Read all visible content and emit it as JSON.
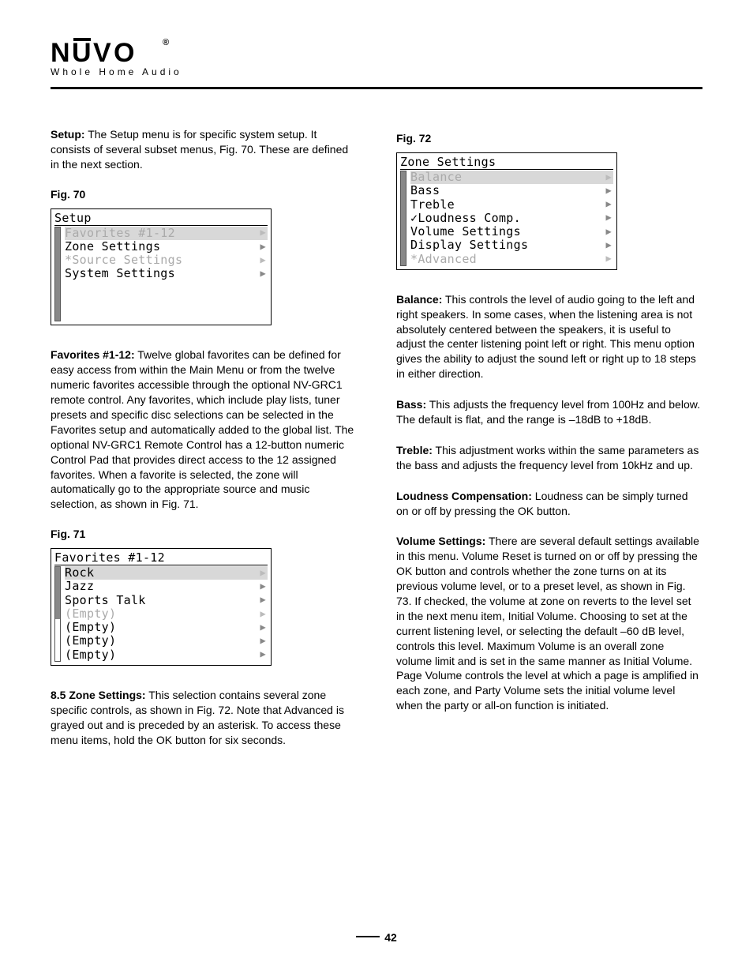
{
  "logo": {
    "main": "NUVO",
    "reg": "®",
    "sub": "Whole Home Audio"
  },
  "left": {
    "p1_label": "Setup:",
    "p1_text": "  The Setup menu is for specific system setup. It consists of several subset menus, Fig. 70. These are defined in the next section.",
    "fig70_label": "Fig. 70",
    "fig70": {
      "title": "Setup",
      "items": [
        {
          "label": "Favorites #1-12",
          "sel": true,
          "dim": true
        },
        {
          "label": "Zone Settings",
          "sel": false,
          "dim": false
        },
        {
          "label": "*Source Settings",
          "sel": false,
          "dim": true
        },
        {
          "label": "System Settings",
          "sel": false,
          "dim": false
        }
      ],
      "blank_rows": 3,
      "thumb_top": 0,
      "thumb_height": 100
    },
    "p2_label": "Favorites #1-12:",
    "p2_text": "  Twelve global favorites can be defined for easy access from within the Main Menu or from the twelve numeric favorites accessible through the optional NV-GRC1 remote control. Any favorites, which include play lists, tuner presets and specific disc selections can be selected in the Favorites setup and automatically added to the global list. The optional NV-GRC1 Remote Control has a 12-button numeric Control Pad that provides direct access to the 12 assigned favorites. When a favorite is selected, the zone will automatically go to the appropriate source and music selection, as shown in Fig. 71.",
    "fig71_label": "Fig. 71",
    "fig71": {
      "title": "Favorites #1-12",
      "items": [
        {
          "label": "Rock",
          "sel": true,
          "dim": false
        },
        {
          "label": "Jazz",
          "sel": false,
          "dim": false
        },
        {
          "label": "Sports Talk",
          "sel": false,
          "dim": false
        },
        {
          "label": " (Empty)",
          "sel": false,
          "dim": true
        },
        {
          "label": " (Empty)",
          "sel": false,
          "dim": false
        },
        {
          "label": " (Empty)",
          "sel": false,
          "dim": false
        },
        {
          "label": " (Empty)",
          "sel": false,
          "dim": false
        }
      ],
      "thumb_top": 0,
      "thumb_height": 55
    },
    "p3_label": "8.5  Zone Settings:",
    "p3_text": "  This selection contains several zone specific controls, as shown in Fig. 72. Note that Advanced is grayed out and is preceded by an asterisk. To access these menu items, hold the OK button for six seconds."
  },
  "right": {
    "fig72_label": "Fig. 72",
    "fig72": {
      "title": "Zone Settings",
      "items": [
        {
          "label": "Balance",
          "sel": true,
          "dim": true
        },
        {
          "label": "Bass",
          "sel": false,
          "dim": false
        },
        {
          "label": "Treble",
          "sel": false,
          "dim": false
        },
        {
          "label": "✓Loudness Comp.",
          "sel": false,
          "dim": false
        },
        {
          "label": "Volume Settings",
          "sel": false,
          "dim": false
        },
        {
          "label": "Display Settings",
          "sel": false,
          "dim": false
        },
        {
          "label": "*Advanced",
          "sel": false,
          "dim": true
        }
      ],
      "thumb_top": 0,
      "thumb_height": 100
    },
    "p1_label": "Balance:",
    "p1_text": " This controls the level of audio going to the left and right speakers. In some cases, when the listening area is not absolutely centered between the speakers, it is useful to adjust the center listening point left or right. This menu option gives the ability to adjust the sound left or right up to 18 steps in either direction.",
    "p2_label": "Bass:",
    "p2_text": " This adjusts the frequency level from 100Hz and below. The default is flat, and the range is –18dB to +18dB.",
    "p3_label": "Treble:",
    "p3_text": "  This adjustment works within the same parameters as the bass and adjusts the frequency level from 10kHz and up.",
    "p4_label": "Loudness Compensation:",
    "p4_text": "  Loudness can be simply turned on or off by pressing the OK button.",
    "p5_label": "Volume Settings:",
    "p5_text": "  There are several default settings available in this menu.  Volume Reset is turned on or off by pressing the OK button and controls whether the zone turns on at its previous volume level, or to a preset level, as shown in Fig. 73. If checked, the volume at zone on reverts to the level set in the next menu item, Initial Volume.  Choosing to set at the current listening level, or selecting the default –60 dB level, controls this level. Maximum Volume is an overall zone volume limit and is set in the same manner as Initial Volume. Page Volume controls the level at which a page is amplified in each zone, and Party Volume sets the initial volume level when the party or all-on function is initiated."
  },
  "page_number": "42"
}
